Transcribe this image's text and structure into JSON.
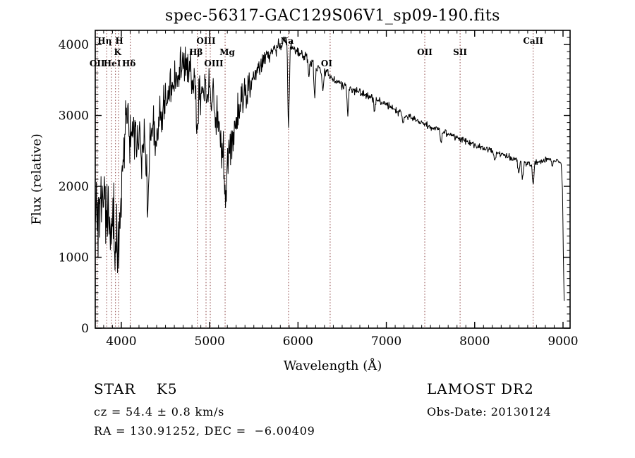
{
  "annotations": {
    "class_label": "STAR    K5",
    "cz": "cz = 54.4 ± 0.8 km/s",
    "radec": "RA = 130.91252, DEC =  −6.00409",
    "survey": "LAMOST DR2",
    "obs_date": "Obs-Date: 20130124"
  },
  "chart_data": {
    "type": "line",
    "title": "spec-56317-GAC129S06V1_sp09-190.fits",
    "xlabel": "Wavelength (Å)",
    "ylabel": "Flux (relative)",
    "xlim": [
      3705,
      9080
    ],
    "ylim": [
      0,
      4200
    ],
    "xticks": [
      4000,
      5000,
      6000,
      7000,
      8000,
      9000
    ],
    "yticks": [
      0,
      1000,
      2000,
      3000,
      4000
    ],
    "x_minor_step": 100,
    "y_minor_step": 100,
    "grid": false,
    "line_color": "#000000",
    "marker_line_color": "#8a4040",
    "marker_lines": [
      {
        "label": "OII",
        "wavelength": 3727,
        "row": 3,
        "dx": 0
      },
      {
        "label": "Hη",
        "wavelength": 3835,
        "row": 1,
        "dx": -3
      },
      {
        "label": "HeI",
        "wavelength": 3889,
        "row": 3,
        "dx": 1
      },
      {
        "label": "K",
        "wavelength": 3934,
        "row": 2,
        "dx": 3
      },
      {
        "label": "H",
        "wavelength": 3969,
        "row": 1,
        "dx": 1
      },
      {
        "label": "Hδ",
        "wavelength": 4102,
        "row": 3,
        "dx": -2
      },
      {
        "label": "Hβ",
        "wavelength": 4861,
        "row": 2,
        "dx": -2
      },
      {
        "label": "OIII",
        "wavelength": 4959,
        "row": 1,
        "dx": 0
      },
      {
        "label": "OIII",
        "wavelength": 5007,
        "row": 3,
        "dx": 5
      },
      {
        "label": "Mg",
        "wavelength": 5175,
        "row": 2,
        "dx": 3
      },
      {
        "label": "Na",
        "wavelength": 5893,
        "row": 1,
        "dx": -2
      },
      {
        "label": "OI",
        "wavelength": 6364,
        "row": 3,
        "dx": -5
      },
      {
        "label": "OII",
        "wavelength": 7435,
        "row": 2,
        "dx": 0
      },
      {
        "label": "SII",
        "wavelength": 7835,
        "row": 2,
        "dx": 0
      },
      {
        "label": "CaII",
        "wavelength": 8662,
        "row": 1,
        "dx": 0
      }
    ],
    "series": [
      {
        "name": "spectrum",
        "noise_seed": 20130124,
        "envelope": [
          [
            3705,
            1100
          ],
          [
            3715,
            1700
          ],
          [
            3730,
            1500
          ],
          [
            3750,
            1650
          ],
          [
            3775,
            1550
          ],
          [
            3800,
            1700
          ],
          [
            3825,
            1600
          ],
          [
            3850,
            1750
          ],
          [
            3875,
            1600
          ],
          [
            3900,
            1550
          ],
          [
            3925,
            1400
          ],
          [
            3945,
            1450
          ],
          [
            3965,
            1400
          ],
          [
            3985,
            1650
          ],
          [
            4005,
            2000
          ],
          [
            4025,
            2600
          ],
          [
            4050,
            2950
          ],
          [
            4080,
            3050
          ],
          [
            4110,
            2950
          ],
          [
            4140,
            2750
          ],
          [
            4170,
            2650
          ],
          [
            4200,
            2700
          ],
          [
            4230,
            2750
          ],
          [
            4260,
            2650
          ],
          [
            4290,
            2450
          ],
          [
            4310,
            2550
          ],
          [
            4340,
            2800
          ],
          [
            4380,
            2850
          ],
          [
            4420,
            2900
          ],
          [
            4460,
            3000
          ],
          [
            4500,
            3200
          ],
          [
            4540,
            3350
          ],
          [
            4580,
            3500
          ],
          [
            4620,
            3600
          ],
          [
            4660,
            3680
          ],
          [
            4700,
            3680
          ],
          [
            4740,
            3650
          ],
          [
            4780,
            3600
          ],
          [
            4815,
            3450
          ],
          [
            4845,
            3250
          ],
          [
            4875,
            3300
          ],
          [
            4905,
            3400
          ],
          [
            4935,
            3400
          ],
          [
            4965,
            3350
          ],
          [
            4995,
            3320
          ],
          [
            5030,
            3230
          ],
          [
            5065,
            3100
          ],
          [
            5100,
            2900
          ],
          [
            5135,
            2600
          ],
          [
            5160,
            2350
          ],
          [
            5180,
            2200
          ],
          [
            5205,
            2350
          ],
          [
            5235,
            2600
          ],
          [
            5270,
            2800
          ],
          [
            5310,
            3000
          ],
          [
            5355,
            3180
          ],
          [
            5400,
            3300
          ],
          [
            5450,
            3420
          ],
          [
            5500,
            3530
          ],
          [
            5550,
            3640
          ],
          [
            5600,
            3740
          ],
          [
            5650,
            3830
          ],
          [
            5700,
            3890
          ],
          [
            5750,
            3950
          ],
          [
            5800,
            4030
          ],
          [
            5845,
            4080
          ],
          [
            5875,
            4030
          ],
          [
            5905,
            3970
          ],
          [
            5940,
            3950
          ],
          [
            5980,
            3920
          ],
          [
            6030,
            3890
          ],
          [
            6090,
            3830
          ],
          [
            6150,
            3760
          ],
          [
            6210,
            3690
          ],
          [
            6270,
            3630
          ],
          [
            6330,
            3580
          ],
          [
            6390,
            3530
          ],
          [
            6450,
            3480
          ],
          [
            6510,
            3430
          ],
          [
            6570,
            3380
          ],
          [
            6630,
            3360
          ],
          [
            6700,
            3330
          ],
          [
            6770,
            3290
          ],
          [
            6840,
            3250
          ],
          [
            6910,
            3210
          ],
          [
            6980,
            3160
          ],
          [
            7050,
            3110
          ],
          [
            7120,
            3060
          ],
          [
            7190,
            3020
          ],
          [
            7260,
            2970
          ],
          [
            7330,
            2930
          ],
          [
            7400,
            2890
          ],
          [
            7470,
            2850
          ],
          [
            7540,
            2820
          ],
          [
            7610,
            2780
          ],
          [
            7680,
            2750
          ],
          [
            7750,
            2710
          ],
          [
            7820,
            2680
          ],
          [
            7890,
            2640
          ],
          [
            7960,
            2610
          ],
          [
            8030,
            2570
          ],
          [
            8100,
            2540
          ],
          [
            8170,
            2510
          ],
          [
            8240,
            2480
          ],
          [
            8310,
            2450
          ],
          [
            8380,
            2420
          ],
          [
            8450,
            2390
          ],
          [
            8510,
            2360
          ],
          [
            8570,
            2330
          ],
          [
            8630,
            2310
          ],
          [
            8690,
            2330
          ],
          [
            8750,
            2360
          ],
          [
            8810,
            2380
          ],
          [
            8870,
            2390
          ],
          [
            8920,
            2380
          ],
          [
            8955,
            2350
          ],
          [
            8980,
            2320
          ],
          [
            8995,
            1900
          ],
          [
            9005,
            900
          ],
          [
            9012,
            420
          ],
          [
            9018,
            380
          ]
        ],
        "noise_amplitude": [
          [
            3705,
            520
          ],
          [
            3850,
            540
          ],
          [
            3950,
            500
          ],
          [
            4050,
            380
          ],
          [
            4200,
            320
          ],
          [
            4400,
            300
          ],
          [
            4600,
            270
          ],
          [
            4861,
            280
          ],
          [
            5050,
            260
          ],
          [
            5200,
            300
          ],
          [
            5350,
            220
          ],
          [
            5550,
            140
          ],
          [
            5750,
            100
          ],
          [
            5900,
            85
          ],
          [
            6100,
            80
          ],
          [
            6350,
            72
          ],
          [
            6600,
            60
          ],
          [
            6900,
            52
          ],
          [
            7200,
            48
          ],
          [
            7600,
            45
          ],
          [
            8000,
            42
          ],
          [
            8400,
            40
          ],
          [
            8700,
            38
          ],
          [
            8950,
            32
          ],
          [
            9018,
            25
          ]
        ],
        "absorption_features": [
          [
            3934,
            450
          ],
          [
            3969,
            380
          ],
          [
            4102,
            350
          ],
          [
            4227,
            450
          ],
          [
            4300,
            850
          ],
          [
            4383,
            380
          ],
          [
            4861,
            420
          ],
          [
            5178,
            280
          ],
          [
            5893,
            1230
          ],
          [
            6122,
            280
          ],
          [
            6190,
            480
          ],
          [
            6280,
            280
          ],
          [
            6563,
            380
          ],
          [
            6867,
            180
          ],
          [
            7190,
            140
          ],
          [
            7620,
            180
          ],
          [
            8230,
            150
          ],
          [
            8498,
            200
          ],
          [
            8542,
            260
          ],
          [
            8662,
            330
          ],
          [
            8880,
            110
          ]
        ]
      }
    ]
  }
}
